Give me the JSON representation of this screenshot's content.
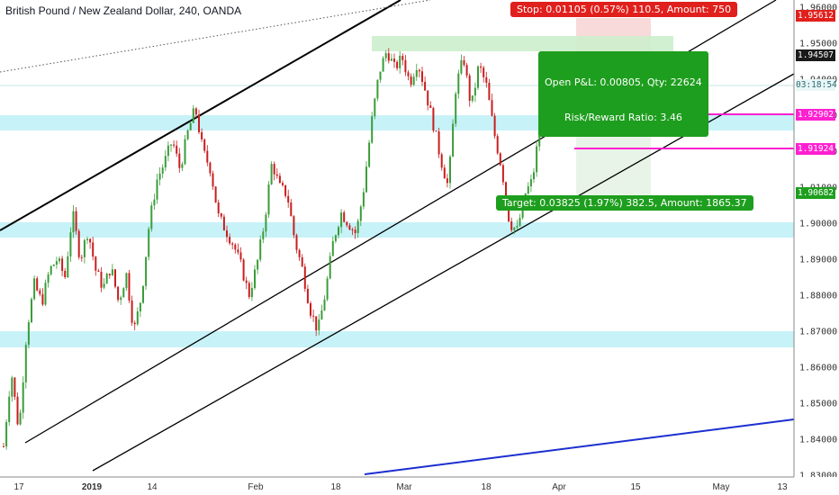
{
  "chart_data": {
    "type": "candlestick",
    "title": "British Pound / New Zealand Dollar, 240, OANDA",
    "ylim": [
      1.8295,
      1.961
    ],
    "y_ticks": [
      "1.96000",
      "1.95000",
      "1.94000",
      "1.93000",
      "1.92000",
      "1.91000",
      "1.90000",
      "1.89000",
      "1.88000",
      "1.87000",
      "1.86000",
      "1.85000",
      "1.84000",
      "1.83000"
    ],
    "x_ticks": [
      "17",
      "2019",
      "14",
      "Feb",
      "18",
      "Mar",
      "18",
      "Apr",
      "15",
      "May",
      "13"
    ],
    "price_tags": {
      "stop": "1.95612",
      "last": "1.94507",
      "countdown": "03:18:54",
      "level_1": "1.92902",
      "level_2": "1.91924",
      "target": "1.90682"
    },
    "position": {
      "side": "short",
      "entry": 1.94507,
      "stop": 1.95612,
      "target": 1.90682,
      "stop_label": "Stop: 0.01105 (0.57%) 110.5, Amount: 750",
      "pnl_label": "Open P&L: 0.00805, Qty: 22624",
      "rr_label": "Risk/Reward Ratio: 3.46",
      "target_label": "Target: 0.03825 (1.97%) 382.5, Amount: 1865.37"
    },
    "support_zones": [
      [
        1.9187,
        1.9207
      ],
      [
        1.8955,
        1.8975
      ],
      [
        1.8649,
        1.8671
      ]
    ],
    "horizontal_levels": [
      1.92902,
      1.91924
    ],
    "ohlc_path": [
      1.838,
      1.859,
      1.842,
      1.87,
      1.883,
      1.878,
      1.887,
      1.89,
      1.885,
      1.903,
      1.89,
      1.898,
      1.887,
      1.882,
      1.888,
      1.878,
      1.886,
      1.87,
      1.88,
      1.9,
      1.912,
      1.917,
      1.923,
      1.915,
      1.925,
      1.932,
      1.92,
      1.915,
      1.902,
      1.898,
      1.894,
      1.888,
      1.88,
      1.888,
      1.9,
      1.917,
      1.91,
      1.908,
      1.895,
      1.887,
      1.876,
      1.87,
      1.881,
      1.895,
      1.903,
      1.9,
      1.897,
      1.91,
      1.928,
      1.942,
      1.948,
      1.943,
      1.946,
      1.939,
      1.945,
      1.937,
      1.928,
      1.918,
      1.91,
      1.938,
      1.946,
      1.932,
      1.944,
      1.938,
      1.925,
      1.915,
      1.9,
      1.898,
      1.908,
      1.912,
      1.928,
      1.93,
      1.946,
      1.928,
      1.938,
      1.941,
      1.935,
      1.94,
      1.942,
      1.939,
      1.945,
      1.942,
      1.944,
      1.9451
    ]
  }
}
